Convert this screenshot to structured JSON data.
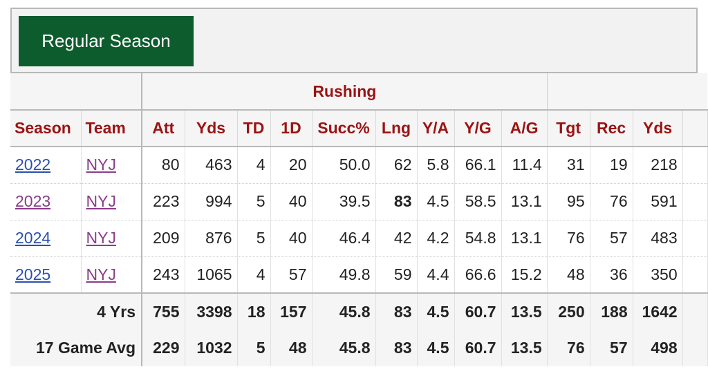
{
  "header": {
    "tab_label": "Regular Season"
  },
  "table": {
    "group_headers": {
      "left": "",
      "rushing": "Rushing",
      "receiving": ""
    },
    "columns": {
      "season": "Season",
      "team": "Team",
      "att": "Att",
      "yds": "Yds",
      "td": "TD",
      "fd": "1D",
      "succ": "Succ%",
      "lng": "Lng",
      "ya": "Y/A",
      "yg": "Y/G",
      "ag": "A/G",
      "tgt": "Tgt",
      "rec": "Rec",
      "rec_yds": "Yds"
    },
    "rows": [
      {
        "season": "2022",
        "team": "NYJ",
        "att": "80",
        "yds": "463",
        "td": "4",
        "fd": "20",
        "succ": "50.0",
        "lng": "62",
        "ya": "5.8",
        "yg": "66.1",
        "ag": "11.4",
        "tgt": "31",
        "rec": "19",
        "rec_yds": "218"
      },
      {
        "season": "2023",
        "team": "NYJ",
        "att": "223",
        "yds": "994",
        "td": "5",
        "fd": "40",
        "succ": "39.5",
        "lng": "83",
        "ya": "4.5",
        "yg": "58.5",
        "ag": "13.1",
        "tgt": "95",
        "rec": "76",
        "rec_yds": "591"
      },
      {
        "season": "2024",
        "team": "NYJ",
        "att": "209",
        "yds": "876",
        "td": "5",
        "fd": "40",
        "succ": "46.4",
        "lng": "42",
        "ya": "4.2",
        "yg": "54.8",
        "ag": "13.1",
        "tgt": "76",
        "rec": "57",
        "rec_yds": "483"
      },
      {
        "season": "2025",
        "team": "NYJ",
        "att": "243",
        "yds": "1065",
        "td": "4",
        "fd": "57",
        "succ": "49.8",
        "lng": "59",
        "ya": "4.4",
        "yg": "66.6",
        "ag": "15.2",
        "tgt": "48",
        "rec": "36",
        "rec_yds": "350"
      }
    ],
    "summary": [
      {
        "label": "4 Yrs",
        "att": "755",
        "yds": "3398",
        "td": "18",
        "fd": "157",
        "succ": "45.8",
        "lng": "83",
        "ya": "4.5",
        "yg": "60.7",
        "ag": "13.5",
        "tgt": "250",
        "rec": "188",
        "rec_yds": "1642"
      },
      {
        "label": "17 Game Avg",
        "att": "229",
        "yds": "1032",
        "td": "5",
        "fd": "48",
        "succ": "45.8",
        "lng": "83",
        "ya": "4.5",
        "yg": "60.7",
        "ag": "13.5",
        "tgt": "76",
        "rec": "57",
        "rec_yds": "498"
      }
    ]
  },
  "colors": {
    "header_green": "#0d5c2d",
    "header_red": "#9b1313",
    "link_blue": "#2a4fb0",
    "link_visited": "#8a3c8a"
  }
}
